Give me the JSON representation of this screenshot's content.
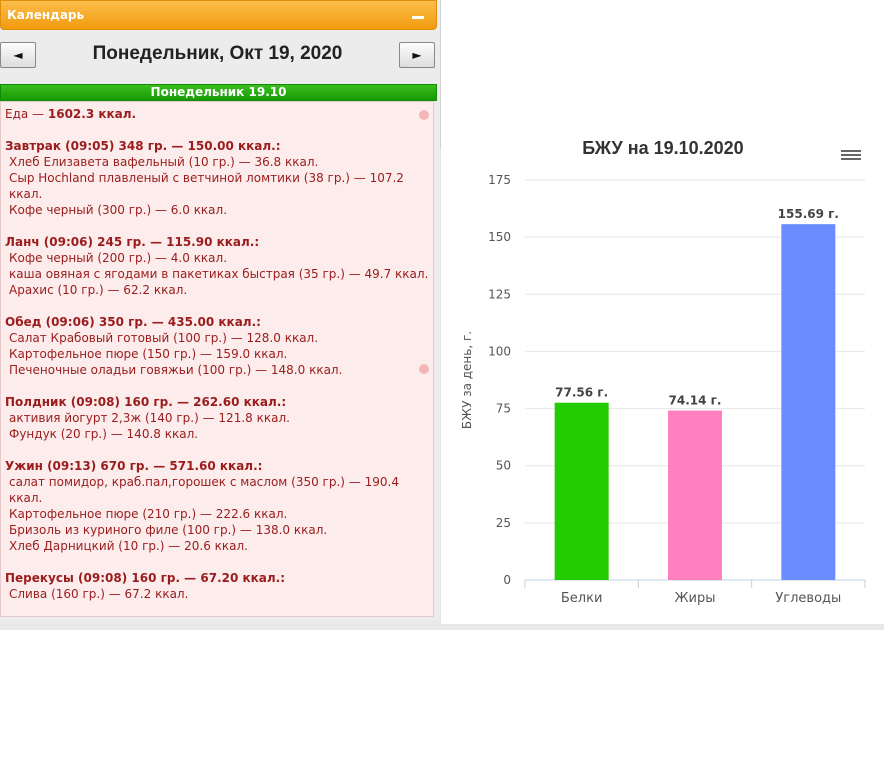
{
  "calendar": {
    "header_title": "Календарь",
    "prev_label": "◄",
    "next_label": "►",
    "date_title": "Понедельник, Окт 19, 2020",
    "day_bar": "Понедельник 19.10"
  },
  "diary": {
    "total_prefix": "Еда — ",
    "total_value": "1602.3 ккал.",
    "meals": [
      {
        "title": "Завтрак (09:05) 348 гр. — 150.00 ккал.:",
        "items": [
          "Хлеб Елизавета вафельный (10 гр.) — 36.8 ккал.",
          "Сыр Hochland плавленый с ветчиной ломтики (38 гр.) — 107.2",
          "ккал.",
          "Кофе черный (300 гр.) — 6.0 ккал."
        ]
      },
      {
        "title": "Ланч (09:06) 245 гр. — 115.90 ккал.:",
        "items": [
          "Кофе черный (200 гр.) — 4.0 ккал.",
          "каша овяная с ягодами в пакетиках быстрая (35 гр.) — 49.7 ккал.",
          "Арахис (10 гр.) — 62.2 ккал."
        ]
      },
      {
        "title": "Обед (09:06) 350 гр. — 435.00 ккал.:",
        "items": [
          "Салат Крабовый готовый (100 гр.) — 128.0 ккал.",
          "Картофельное пюре (150 гр.) — 159.0 ккал.",
          "Печеночные оладьи говяжьи (100 гр.) — 148.0 ккал."
        ]
      },
      {
        "title": "Полдник (09:08) 160 гр. — 262.60 ккал.:",
        "items": [
          "активия йогурт 2,3ж (140 гр.) — 121.8 ккал.",
          "Фундук (20 гр.) — 140.8 ккал."
        ]
      },
      {
        "title": "Ужин (09:13) 670 гр. — 571.60 ккал.:",
        "items": [
          "салат помидор, краб.пал,горошек с маслом (350 гр.) — 190.4",
          "ккал.",
          "Картофельное пюре (210 гр.) — 222.6 ккал.",
          "Бризоль из куриного филе (100 гр.) — 138.0 ккал.",
          "Хлеб Дарницкий (10 гр.) — 20.6 ккал."
        ]
      },
      {
        "title": "Перекусы (09:08) 160 гр. — 67.20 ккал.:",
        "items": [
          "Слива (160 гр.) — 67.2 ккал."
        ]
      }
    ]
  },
  "colors": {
    "header_orange": "#f5a623",
    "day_bar_green": "#1aa40a",
    "diary_text": "#9a1c1c",
    "diary_bg": "#fdecec"
  },
  "icons": {
    "header_collapse": "minus-icon",
    "chart_menu": "hamburger-menu-icon"
  },
  "chart_data": {
    "type": "bar",
    "title": "БЖУ на 19.10.2020",
    "ylabel": "БЖУ за день, г.",
    "xlabel": "",
    "categories": [
      "Белки",
      "Жиры",
      "Углеводы"
    ],
    "values": [
      77.56,
      74.14,
      155.69
    ],
    "value_labels": [
      "77.56 г.",
      "74.14 г.",
      "155.69 г."
    ],
    "colors": [
      "#22cc00",
      "#ff7fbf",
      "#6b8cff"
    ],
    "ylim": [
      0,
      175
    ],
    "yticks": [
      0,
      25,
      50,
      75,
      100,
      125,
      150,
      175
    ],
    "grid": true,
    "legend": "none"
  }
}
